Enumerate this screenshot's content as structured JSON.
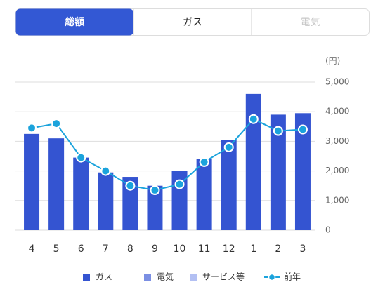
{
  "tabs": [
    {
      "label": "総額",
      "active": true
    },
    {
      "label": "ガス",
      "active": false
    },
    {
      "label": "電気",
      "active": false,
      "disabled": true
    }
  ],
  "chart_data": {
    "type": "bar",
    "unit": "(円)",
    "categories": [
      "4",
      "5",
      "6",
      "7",
      "8",
      "9",
      "10",
      "11",
      "12",
      "1",
      "2",
      "3"
    ],
    "series": [
      {
        "name": "ガス",
        "color": "#3454d1",
        "values": [
          3250,
          3100,
          2450,
          1950,
          1800,
          1500,
          2000,
          2400,
          3050,
          4600,
          3900,
          3950
        ]
      },
      {
        "name": "電気",
        "color": "#7b8fe3"
      },
      {
        "name": "サービス等",
        "color": "#b3c0f3"
      },
      {
        "name": "前年",
        "type": "line",
        "color": "#1ba3dc",
        "values": [
          3450,
          3600,
          2450,
          2000,
          1500,
          1350,
          1550,
          2300,
          2800,
          3750,
          3350,
          3400
        ]
      }
    ],
    "ylim": [
      0,
      5000
    ],
    "yticks": [
      0,
      {
        "value": 1000,
        "label": "1,000"
      },
      {
        "value": 2000,
        "label": "2,000"
      },
      {
        "value": 3000,
        "label": "3,000"
      },
      {
        "value": 4000,
        "label": "4,000"
      },
      {
        "value": 5000,
        "label": "5,000"
      }
    ],
    "grid": true
  }
}
